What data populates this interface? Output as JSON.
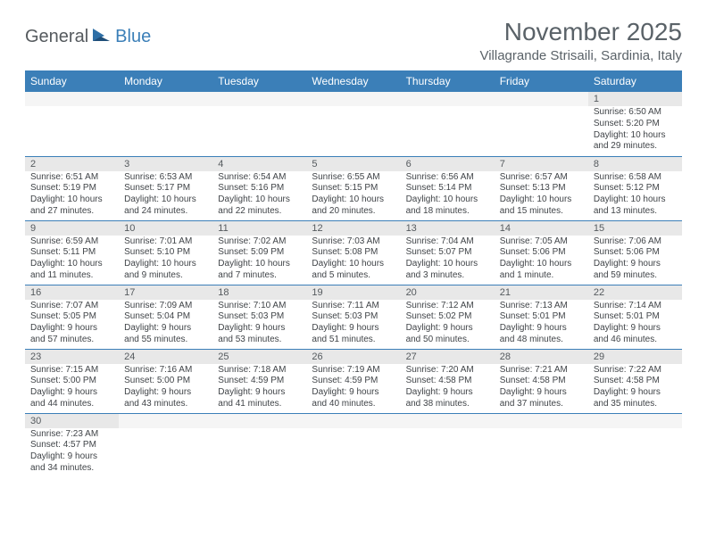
{
  "logo": {
    "part1": "General",
    "part2": "Blue"
  },
  "title": "November 2025",
  "location": "Villagrande Strisaili, Sardinia, Italy",
  "day_headers": [
    "Sunday",
    "Monday",
    "Tuesday",
    "Wednesday",
    "Thursday",
    "Friday",
    "Saturday"
  ],
  "colors": {
    "header_bg": "#3b7fb8",
    "header_text": "#ffffff",
    "daynum_bg": "#e8e8e8",
    "text": "#404448",
    "title_text": "#5a6268"
  },
  "weeks": [
    [
      {
        "day": "",
        "lines": []
      },
      {
        "day": "",
        "lines": []
      },
      {
        "day": "",
        "lines": []
      },
      {
        "day": "",
        "lines": []
      },
      {
        "day": "",
        "lines": []
      },
      {
        "day": "",
        "lines": []
      },
      {
        "day": "1",
        "lines": [
          "Sunrise: 6:50 AM",
          "Sunset: 5:20 PM",
          "Daylight: 10 hours and 29 minutes."
        ]
      }
    ],
    [
      {
        "day": "2",
        "lines": [
          "Sunrise: 6:51 AM",
          "Sunset: 5:19 PM",
          "Daylight: 10 hours and 27 minutes."
        ]
      },
      {
        "day": "3",
        "lines": [
          "Sunrise: 6:53 AM",
          "Sunset: 5:17 PM",
          "Daylight: 10 hours and 24 minutes."
        ]
      },
      {
        "day": "4",
        "lines": [
          "Sunrise: 6:54 AM",
          "Sunset: 5:16 PM",
          "Daylight: 10 hours and 22 minutes."
        ]
      },
      {
        "day": "5",
        "lines": [
          "Sunrise: 6:55 AM",
          "Sunset: 5:15 PM",
          "Daylight: 10 hours and 20 minutes."
        ]
      },
      {
        "day": "6",
        "lines": [
          "Sunrise: 6:56 AM",
          "Sunset: 5:14 PM",
          "Daylight: 10 hours and 18 minutes."
        ]
      },
      {
        "day": "7",
        "lines": [
          "Sunrise: 6:57 AM",
          "Sunset: 5:13 PM",
          "Daylight: 10 hours and 15 minutes."
        ]
      },
      {
        "day": "8",
        "lines": [
          "Sunrise: 6:58 AM",
          "Sunset: 5:12 PM",
          "Daylight: 10 hours and 13 minutes."
        ]
      }
    ],
    [
      {
        "day": "9",
        "lines": [
          "Sunrise: 6:59 AM",
          "Sunset: 5:11 PM",
          "Daylight: 10 hours and 11 minutes."
        ]
      },
      {
        "day": "10",
        "lines": [
          "Sunrise: 7:01 AM",
          "Sunset: 5:10 PM",
          "Daylight: 10 hours and 9 minutes."
        ]
      },
      {
        "day": "11",
        "lines": [
          "Sunrise: 7:02 AM",
          "Sunset: 5:09 PM",
          "Daylight: 10 hours and 7 minutes."
        ]
      },
      {
        "day": "12",
        "lines": [
          "Sunrise: 7:03 AM",
          "Sunset: 5:08 PM",
          "Daylight: 10 hours and 5 minutes."
        ]
      },
      {
        "day": "13",
        "lines": [
          "Sunrise: 7:04 AM",
          "Sunset: 5:07 PM",
          "Daylight: 10 hours and 3 minutes."
        ]
      },
      {
        "day": "14",
        "lines": [
          "Sunrise: 7:05 AM",
          "Sunset: 5:06 PM",
          "Daylight: 10 hours and 1 minute."
        ]
      },
      {
        "day": "15",
        "lines": [
          "Sunrise: 7:06 AM",
          "Sunset: 5:06 PM",
          "Daylight: 9 hours and 59 minutes."
        ]
      }
    ],
    [
      {
        "day": "16",
        "lines": [
          "Sunrise: 7:07 AM",
          "Sunset: 5:05 PM",
          "Daylight: 9 hours and 57 minutes."
        ]
      },
      {
        "day": "17",
        "lines": [
          "Sunrise: 7:09 AM",
          "Sunset: 5:04 PM",
          "Daylight: 9 hours and 55 minutes."
        ]
      },
      {
        "day": "18",
        "lines": [
          "Sunrise: 7:10 AM",
          "Sunset: 5:03 PM",
          "Daylight: 9 hours and 53 minutes."
        ]
      },
      {
        "day": "19",
        "lines": [
          "Sunrise: 7:11 AM",
          "Sunset: 5:03 PM",
          "Daylight: 9 hours and 51 minutes."
        ]
      },
      {
        "day": "20",
        "lines": [
          "Sunrise: 7:12 AM",
          "Sunset: 5:02 PM",
          "Daylight: 9 hours and 50 minutes."
        ]
      },
      {
        "day": "21",
        "lines": [
          "Sunrise: 7:13 AM",
          "Sunset: 5:01 PM",
          "Daylight: 9 hours and 48 minutes."
        ]
      },
      {
        "day": "22",
        "lines": [
          "Sunrise: 7:14 AM",
          "Sunset: 5:01 PM",
          "Daylight: 9 hours and 46 minutes."
        ]
      }
    ],
    [
      {
        "day": "23",
        "lines": [
          "Sunrise: 7:15 AM",
          "Sunset: 5:00 PM",
          "Daylight: 9 hours and 44 minutes."
        ]
      },
      {
        "day": "24",
        "lines": [
          "Sunrise: 7:16 AM",
          "Sunset: 5:00 PM",
          "Daylight: 9 hours and 43 minutes."
        ]
      },
      {
        "day": "25",
        "lines": [
          "Sunrise: 7:18 AM",
          "Sunset: 4:59 PM",
          "Daylight: 9 hours and 41 minutes."
        ]
      },
      {
        "day": "26",
        "lines": [
          "Sunrise: 7:19 AM",
          "Sunset: 4:59 PM",
          "Daylight: 9 hours and 40 minutes."
        ]
      },
      {
        "day": "27",
        "lines": [
          "Sunrise: 7:20 AM",
          "Sunset: 4:58 PM",
          "Daylight: 9 hours and 38 minutes."
        ]
      },
      {
        "day": "28",
        "lines": [
          "Sunrise: 7:21 AM",
          "Sunset: 4:58 PM",
          "Daylight: 9 hours and 37 minutes."
        ]
      },
      {
        "day": "29",
        "lines": [
          "Sunrise: 7:22 AM",
          "Sunset: 4:58 PM",
          "Daylight: 9 hours and 35 minutes."
        ]
      }
    ],
    [
      {
        "day": "30",
        "lines": [
          "Sunrise: 7:23 AM",
          "Sunset: 4:57 PM",
          "Daylight: 9 hours and 34 minutes."
        ]
      },
      {
        "day": "",
        "lines": []
      },
      {
        "day": "",
        "lines": []
      },
      {
        "day": "",
        "lines": []
      },
      {
        "day": "",
        "lines": []
      },
      {
        "day": "",
        "lines": []
      },
      {
        "day": "",
        "lines": []
      }
    ]
  ]
}
